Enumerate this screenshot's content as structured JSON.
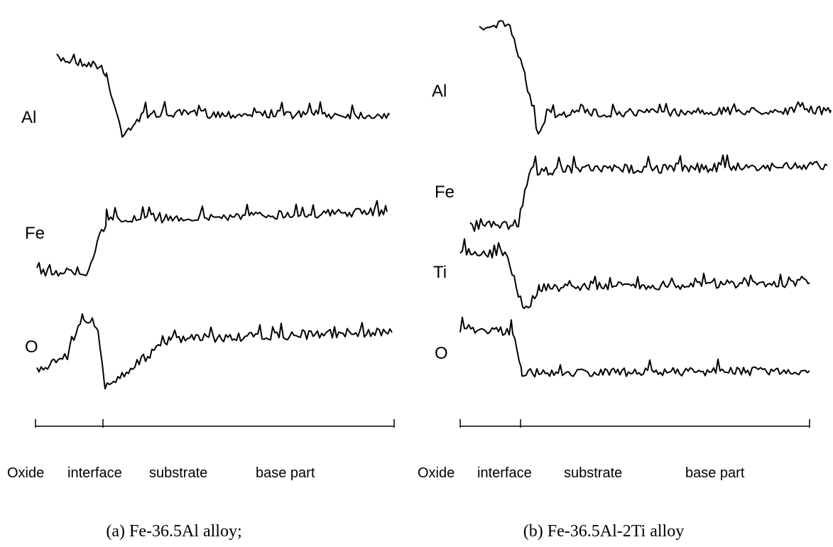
{
  "panels": [
    {
      "labels": [
        "Al",
        "Fe",
        "O"
      ],
      "axis_labels": [
        "Oxide",
        "interface",
        "substrate",
        "base part"
      ],
      "caption": "(a) Fe-36.5Al alloy;"
    },
    {
      "labels": [
        "Al",
        "Fe",
        "Ti",
        "O"
      ],
      "axis_labels": [
        "Oxide",
        "interface",
        "substrate",
        "base part"
      ],
      "caption": "(b) Fe-36.5Al-2Ti alloy"
    }
  ]
}
